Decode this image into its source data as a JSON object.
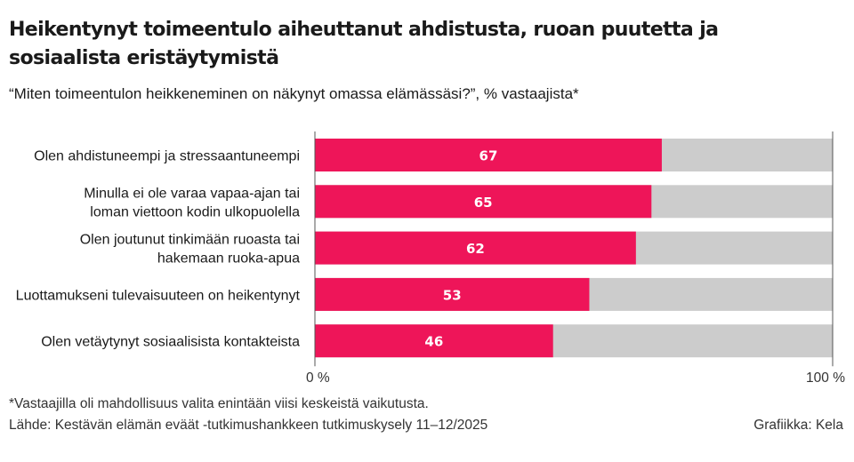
{
  "title": "Heikentynyt toimeentulo aiheuttanut ahdistusta, ruoan puutetta ja sosiaalista eristäytymistä",
  "subtitle": "“Miten toimeentulon heikkeneminen on näkynyt omassa elämässäsi?”, % vastaajista*",
  "footnote": "*Vastaajilla oli mahdollisuus valita enintään viisi keskeistä vaikutusta.",
  "source": "Lähde: Kestävän elämän eväät -tutkimushankkeen tutkimuskysely 11–12/2025",
  "credit": "Grafiikka: Kela",
  "colors": {
    "bar": "#ee1559",
    "track": "#cccccc",
    "label": "#ffffff",
    "axis": "#555555"
  },
  "chart_data": {
    "type": "bar",
    "orientation": "horizontal",
    "categories": [
      [
        "Olen ahdistuneempi ja stressaantuneempi"
      ],
      [
        "Minulla ei ole varaa vapaa-ajan tai",
        "loman viettoon kodin ulkopuolella"
      ],
      [
        "Olen joutunut tinkimään ruoasta tai",
        "hakemaan ruoka-apua"
      ],
      [
        "Luottamukseni tulevaisuuteen on heikentynyt"
      ],
      [
        "Olen vetäytynyt sosiaalisista kontakteista"
      ]
    ],
    "values": [
      67,
      65,
      62,
      53,
      46
    ],
    "xlim": [
      0,
      100
    ],
    "tick_labels": [
      "0 %",
      "100 %"
    ],
    "data_labels": true,
    "grid": false
  }
}
